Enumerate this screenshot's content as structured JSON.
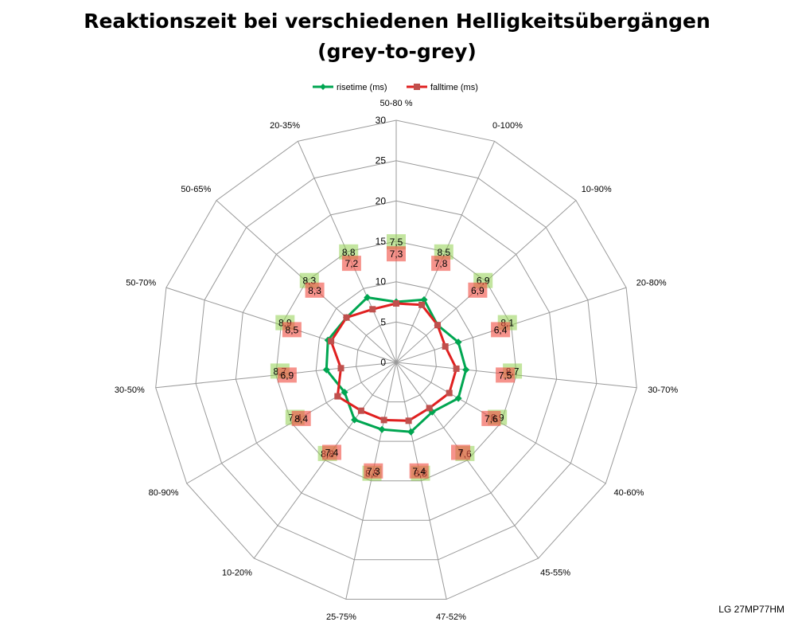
{
  "chart_data": {
    "type": "radar",
    "title": "Reaktionszeit bei verschiedenen Helligkeitsübergängen",
    "subtitle": "(grey-to-grey)",
    "categories": [
      "50-80 %",
      "0-100%",
      "10-90%",
      "20-80%",
      "30-70%",
      "40-60%",
      "45-55%",
      "47-52%",
      "25-75%",
      "10-20%",
      "80-90%",
      "30-50%",
      "50-70%",
      "50-65%",
      "20-35%"
    ],
    "rlim": [
      0,
      30
    ],
    "ticks": [
      0,
      5,
      10,
      15,
      20,
      25,
      30
    ],
    "grid": true,
    "legend_position": "top",
    "series": [
      {
        "name": "risetime (ms)",
        "color": "#00A651",
        "marker": "diamond",
        "values": [
          7.5,
          8.5,
          6.9,
          8.1,
          8.7,
          8.9,
          7.6,
          8.8,
          8.5,
          8.8,
          7.4,
          8.7,
          8.9,
          8.3,
          8.8
        ],
        "labels": [
          "7,5",
          "8,5",
          "6,9",
          "8,1",
          "8,7",
          "8,9",
          "7,6",
          "8,8",
          "8,5",
          "8,8",
          "7,4",
          "8,7",
          "8,9",
          "8,3",
          "8,8"
        ]
      },
      {
        "name": "falltime (ms)",
        "color": "#E02020",
        "marker": "square",
        "values": [
          7.3,
          7.8,
          6.9,
          6.4,
          7.5,
          7.6,
          7.0,
          7.4,
          7.3,
          7.4,
          8.4,
          6.9,
          8.5,
          8.3,
          7.2
        ],
        "labels": [
          "7,3",
          "7,8",
          "6,9",
          "6,4",
          "7,5",
          "7,6",
          "7",
          "7,4",
          "7,3",
          "7,4",
          "8,4",
          "6,9",
          "8,5",
          "8,3",
          "7,2"
        ]
      }
    ]
  },
  "watermark": "LG 27MP77HM"
}
